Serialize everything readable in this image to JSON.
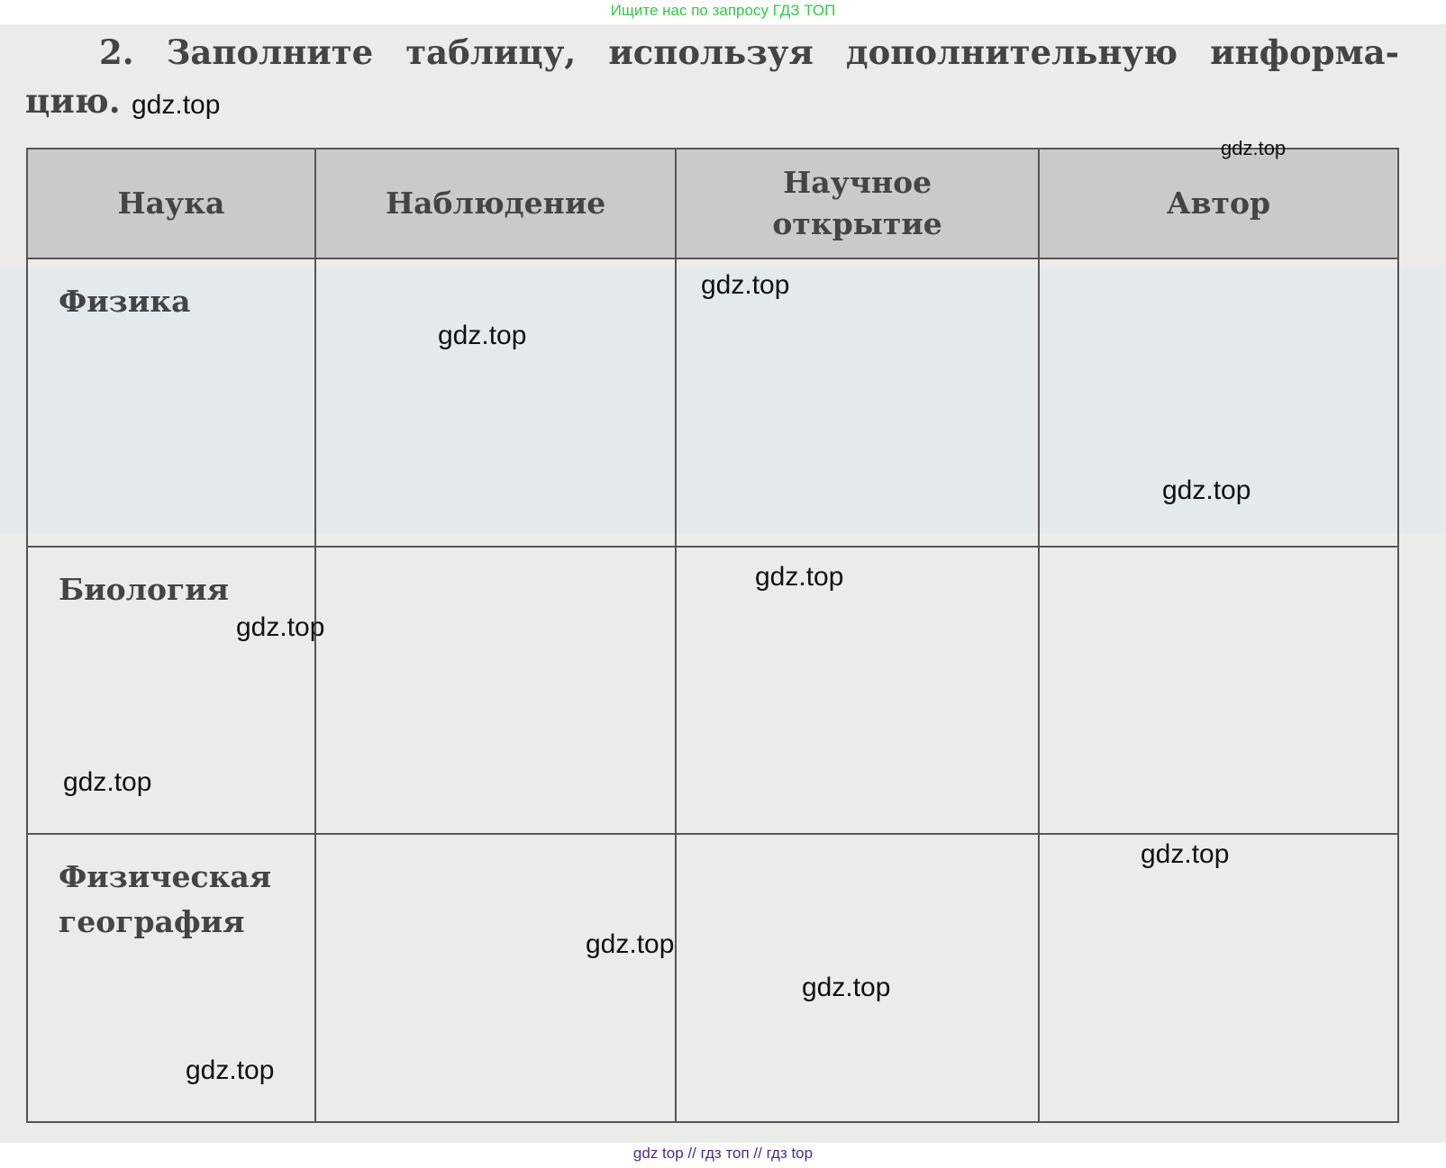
{
  "banner_top": "Ищите нас по запросу ГДЗ ТОП",
  "banner_bottom": "gdz top  //  гдз топ  //  гдз top",
  "task": {
    "number": "2.",
    "text_line1": "Заполните таблицу, используя дополнительную информа-",
    "text_line2": "цию."
  },
  "table": {
    "headers": [
      "Наука",
      "Наблюдение",
      "Научное открытие",
      "Автор"
    ],
    "rows": [
      {
        "science": "Физика"
      },
      {
        "science": "Биология"
      },
      {
        "science": "Физическая география"
      }
    ]
  },
  "watermark": "gdz.top"
}
